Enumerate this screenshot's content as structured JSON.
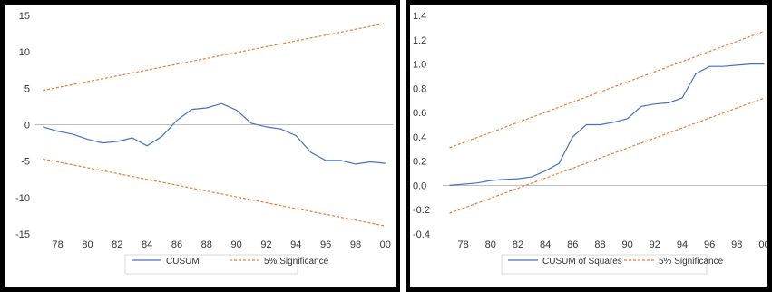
{
  "chart_data": [
    {
      "type": "line",
      "x_tick_labels": [
        "78",
        "80",
        "82",
        "84",
        "86",
        "88",
        "90",
        "92",
        "94",
        "96",
        "98",
        "00"
      ],
      "x_ticks": [
        1978,
        1980,
        1982,
        1984,
        1986,
        1988,
        1990,
        1992,
        1994,
        1996,
        1998,
        2000
      ],
      "xlim": [
        1976.5,
        2000.5
      ],
      "ylim": [
        -15,
        15
      ],
      "y_ticks": [
        -15,
        -10,
        -5,
        0,
        5,
        10,
        15
      ],
      "y_tick_labels": [
        "-15",
        "-10",
        "-5",
        "0",
        "5",
        "10",
        "15"
      ],
      "legend_position": "bottom",
      "series": [
        {
          "name": "CUSUM",
          "color": "#4472c4",
          "style": "solid",
          "x": [
            1977,
            1978,
            1979,
            1980,
            1981,
            1982,
            1983,
            1984,
            1985,
            1986,
            1987,
            1988,
            1989,
            1990,
            1991,
            1992,
            1993,
            1994,
            1995,
            1996,
            1997,
            1998,
            1999,
            2000
          ],
          "values": [
            -0.3,
            -0.9,
            -1.3,
            -2.0,
            -2.5,
            -2.3,
            -1.8,
            -2.9,
            -1.6,
            0.6,
            2.1,
            2.3,
            2.9,
            2.0,
            0.2,
            -0.3,
            -0.6,
            -1.5,
            -3.8,
            -4.9,
            -4.9,
            -5.4,
            -5.1,
            -5.3
          ]
        },
        {
          "name": "5% Significance",
          "color": "#ed7d31",
          "style": "dashed",
          "x": [
            1977,
            2000
          ],
          "values": [
            4.7,
            13.9
          ]
        },
        {
          "name": "",
          "color": "#ed7d31",
          "style": "dashed",
          "x": [
            1977,
            2000
          ],
          "values": [
            -4.7,
            -13.9
          ]
        }
      ],
      "legend": [
        {
          "label": "CUSUM",
          "color": "#4472c4",
          "style": "solid"
        },
        {
          "label": "5% Significance",
          "color": "#ed7d31",
          "style": "dashed"
        }
      ]
    },
    {
      "type": "line",
      "x_tick_labels": [
        "78",
        "80",
        "82",
        "84",
        "86",
        "88",
        "90",
        "92",
        "94",
        "96",
        "98",
        "00"
      ],
      "x_ticks": [
        1978,
        1980,
        1982,
        1984,
        1986,
        1988,
        1990,
        1992,
        1994,
        1996,
        1998,
        2000
      ],
      "xlim": [
        1976.5,
        2000.5
      ],
      "ylim": [
        -0.4,
        1.4
      ],
      "y_ticks": [
        -0.4,
        -0.2,
        0.0,
        0.2,
        0.4,
        0.6,
        0.8,
        1.0,
        1.2,
        1.4
      ],
      "y_tick_labels": [
        "-0.4",
        "-0.2",
        "0.0",
        "0.2",
        "0.4",
        "0.6",
        "0.8",
        "1.0",
        "1.2",
        "1.4"
      ],
      "legend_position": "bottom",
      "series": [
        {
          "name": "CUSUM of Squares",
          "color": "#4472c4",
          "style": "solid",
          "x": [
            1977,
            1978,
            1979,
            1980,
            1981,
            1982,
            1983,
            1984,
            1985,
            1986,
            1987,
            1988,
            1989,
            1990,
            1991,
            1992,
            1993,
            1994,
            1995,
            1996,
            1997,
            1998,
            1999,
            2000
          ],
          "values": [
            0.0,
            0.01,
            0.02,
            0.04,
            0.05,
            0.055,
            0.07,
            0.12,
            0.18,
            0.4,
            0.5,
            0.5,
            0.52,
            0.55,
            0.65,
            0.67,
            0.68,
            0.72,
            0.92,
            0.98,
            0.98,
            0.99,
            1.0,
            1.0
          ]
        },
        {
          "name": "5% Significance",
          "color": "#ed7d31",
          "style": "dashed",
          "x": [
            1977,
            2000
          ],
          "values": [
            0.31,
            1.27
          ]
        },
        {
          "name": "",
          "color": "#ed7d31",
          "style": "dashed",
          "x": [
            1977,
            2000
          ],
          "values": [
            -0.23,
            0.72
          ]
        }
      ],
      "legend": [
        {
          "label": "CUSUM of Squares",
          "color": "#4472c4",
          "style": "solid"
        },
        {
          "label": "5% Significance",
          "color": "#ed7d31",
          "style": "dashed"
        }
      ]
    }
  ]
}
